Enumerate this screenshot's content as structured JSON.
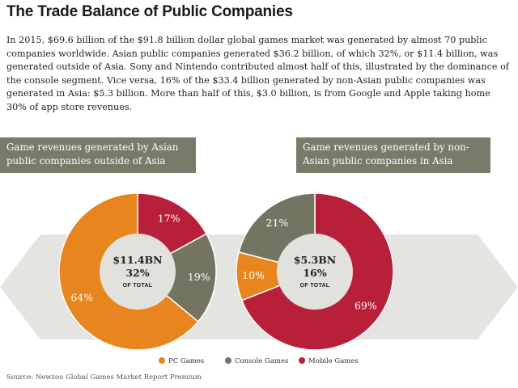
{
  "title": "The Trade Balance of Public Companies",
  "intro": "In 2015, $69.6 billion of the $91.8 billion dollar global games market was generated by almost 70 public companies worldwide. Asian public companies generated $36.2 billion, of which 32%, or $11.4 billion, was generated outside of Asia. Sony and Nintendo contributed almost half of this, illustrated by the dominance of the console segment. Vice versa, 16% of the $33.4 billion generated by non-Asian public companies was generated in Asia: $5.3 billion. More than half of this, $3.0 billion, is from Google and Apple taking home 30% of app store revenues.",
  "box_left": "Game revenues generated by Asian public companies outside of Asia",
  "box_right": "Game revenues generated by non-Asian public companies in Asia",
  "source": "Source: Newzoo Global Games Market Report Premium",
  "colors": {
    "pc": "#e8851e",
    "console": "#747462",
    "mobile": "#b8203a",
    "center": "#e2e2dc",
    "arrow": "#e4e4e0"
  },
  "chart_data": [
    {
      "type": "pie",
      "title": "Game revenues generated by Asian public companies outside of Asia",
      "center_value": "$11.4BN",
      "center_pct": "32%",
      "center_note": "OF TOTAL",
      "categories": [
        "Mobile Games",
        "Console Games",
        "PC Games"
      ],
      "values": [
        17,
        19,
        64
      ],
      "labels": [
        "17%",
        "19%",
        "64%"
      ]
    },
    {
      "type": "pie",
      "title": "Game revenues generated by non-Asian public companies in Asia",
      "center_value": "$5.3BN",
      "center_pct": "16%",
      "center_note": "OF TOTAL",
      "categories": [
        "Mobile Games",
        "PC Games",
        "Console Games"
      ],
      "values": [
        69,
        10,
        21
      ],
      "labels": [
        "69%",
        "10%",
        "21%"
      ]
    }
  ],
  "legend": [
    {
      "label": "PC Games",
      "color": "#e8851e"
    },
    {
      "label": "Console Games",
      "color": "#747462"
    },
    {
      "label": "Mobile Games",
      "color": "#b8203a"
    }
  ]
}
